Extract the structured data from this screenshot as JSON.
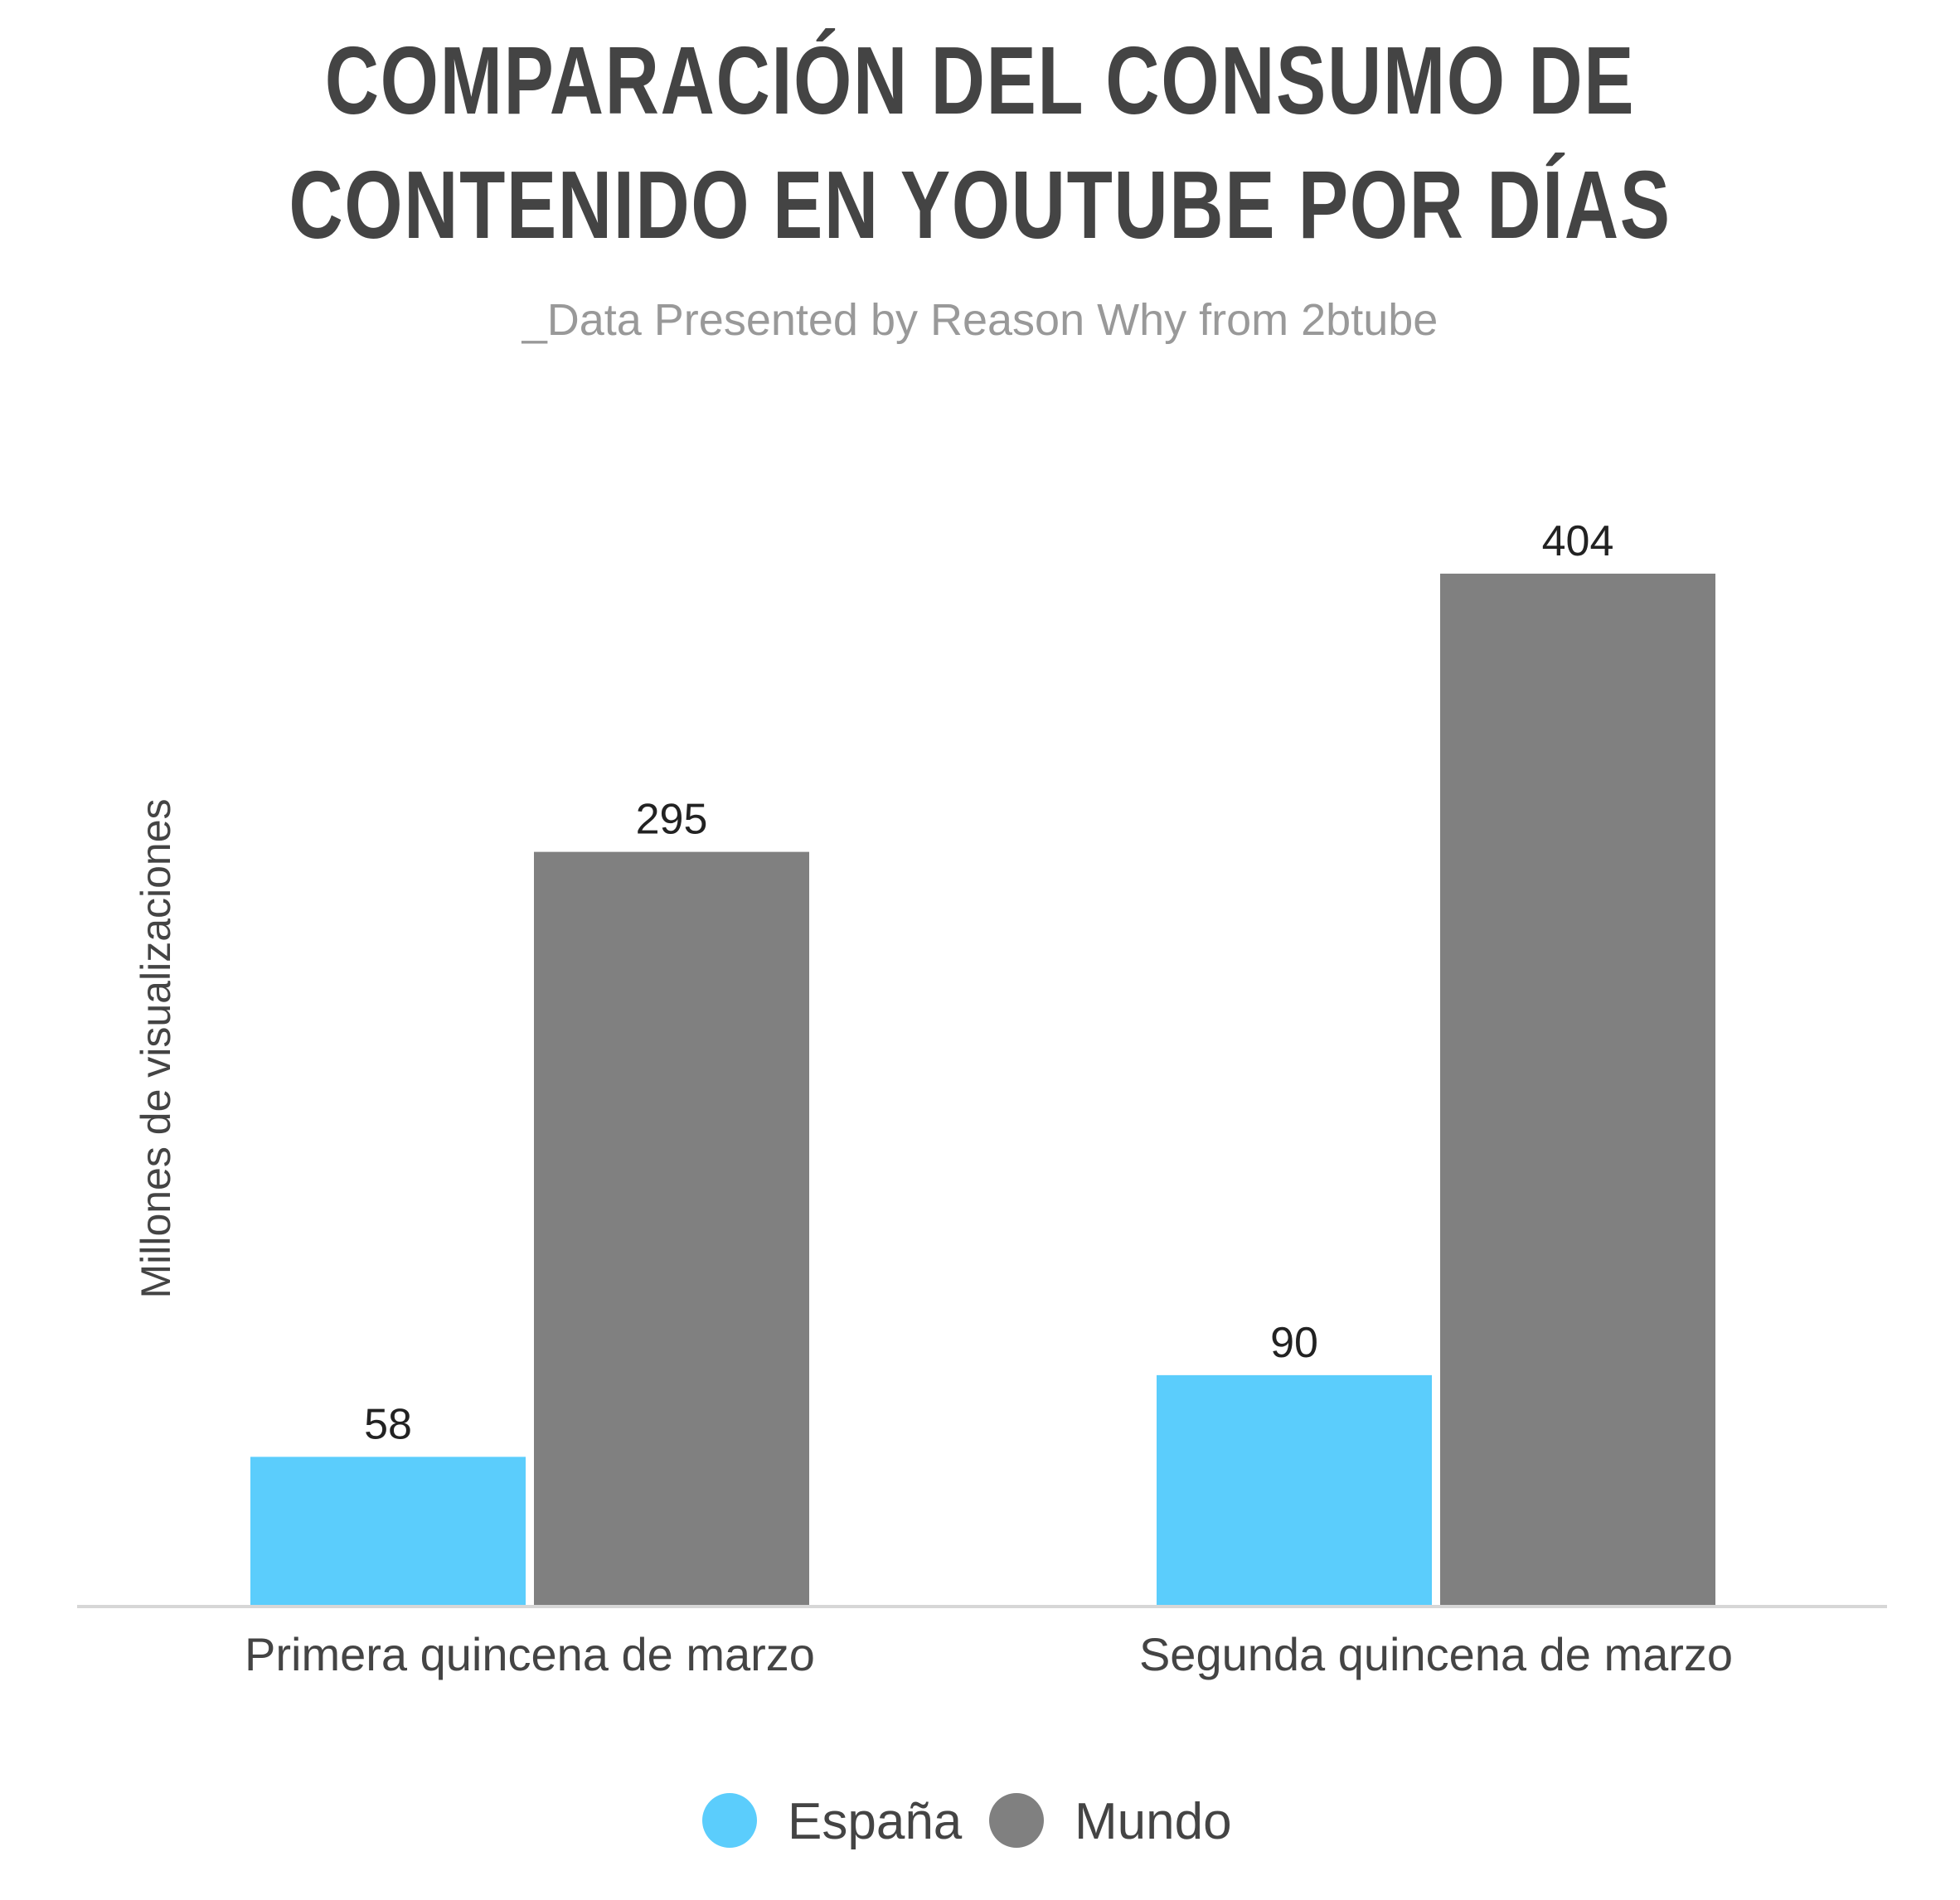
{
  "title_line1": "COMPARACIÓN DEL CONSUMO DE",
  "title_line2": "CONTENIDO EN YOUTUBE POR DÍAS",
  "subtitle": "_Data Presented by Reason Why from 2btube",
  "chart_data": {
    "type": "bar",
    "title": "COMPARACIÓN DEL CONSUMO DE CONTENIDO EN YOUTUBE POR DÍAS",
    "subtitle": "_Data Presented by Reason Why from 2btube",
    "ylabel": "Millones de visualizaciones",
    "xlabel": "",
    "categories": [
      "Primera quincena de marzo",
      "Segunda quincena de marzo"
    ],
    "series": [
      {
        "name": "España",
        "color": "#5BCDFC",
        "values": [
          58,
          90
        ]
      },
      {
        "name": "Mundo",
        "color": "#808080",
        "values": [
          295,
          404
        ]
      }
    ],
    "ylim": [
      0,
      404
    ],
    "grid": false,
    "legend": "bottom-center",
    "data_labels": true
  }
}
